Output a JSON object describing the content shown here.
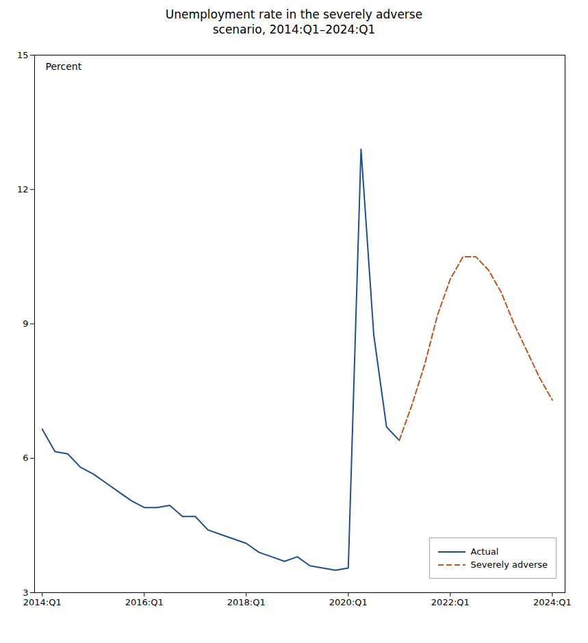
{
  "chart_data": {
    "type": "line",
    "title": "Unemployment rate in the severely adverse\nscenario, 2014:Q1–2024:Q1",
    "ylabel": "Percent",
    "x": [
      2014.0,
      2014.25,
      2014.5,
      2014.75,
      2015.0,
      2015.25,
      2015.5,
      2015.75,
      2016.0,
      2016.25,
      2016.5,
      2016.75,
      2017.0,
      2017.25,
      2017.5,
      2017.75,
      2018.0,
      2018.25,
      2018.5,
      2018.75,
      2019.0,
      2019.25,
      2019.5,
      2019.75,
      2020.0,
      2020.25,
      2020.5,
      2020.75,
      2021.0,
      2021.25,
      2021.5,
      2021.75,
      2022.0,
      2022.25,
      2022.5,
      2022.75,
      2023.0,
      2023.25,
      2023.5,
      2023.75,
      2024.0
    ],
    "series": [
      {
        "name": "Actual",
        "color": "#1f4e8c",
        "line_style": "solid",
        "values": [
          6.65,
          6.15,
          6.1,
          5.8,
          5.65,
          5.45,
          5.25,
          5.05,
          4.9,
          4.9,
          4.95,
          4.7,
          4.7,
          4.4,
          4.3,
          4.2,
          4.1,
          3.9,
          3.8,
          3.7,
          3.8,
          3.6,
          3.55,
          3.5,
          3.55,
          12.9,
          8.75,
          6.7,
          6.4,
          null,
          null,
          null,
          null,
          null,
          null,
          null,
          null,
          null,
          null,
          null,
          null
        ]
      },
      {
        "name": "Severely adverse",
        "color": "#c0521e",
        "line_style": "dashed",
        "values": [
          null,
          null,
          null,
          null,
          null,
          null,
          null,
          null,
          null,
          null,
          null,
          null,
          null,
          null,
          null,
          null,
          null,
          null,
          null,
          null,
          null,
          null,
          null,
          null,
          null,
          null,
          null,
          null,
          6.4,
          7.2,
          8.1,
          9.2,
          10.0,
          10.5,
          10.5,
          10.2,
          9.7,
          9.0,
          8.4,
          7.8,
          7.3
        ]
      }
    ],
    "xlim": [
      2013.85,
      2024.25
    ],
    "xticks": [
      {
        "value": 2014.0,
        "label": "2014:Q1"
      },
      {
        "value": 2016.0,
        "label": "2016:Q1"
      },
      {
        "value": 2018.0,
        "label": "2018:Q1"
      },
      {
        "value": 2020.0,
        "label": "2020:Q1"
      },
      {
        "value": 2022.0,
        "label": "2022:Q1"
      },
      {
        "value": 2024.0,
        "label": "2024:Q1"
      }
    ],
    "ylim": [
      3,
      15
    ],
    "yticks": [
      3,
      6,
      9,
      12,
      15
    ],
    "grid": false,
    "legend": "lower right"
  }
}
